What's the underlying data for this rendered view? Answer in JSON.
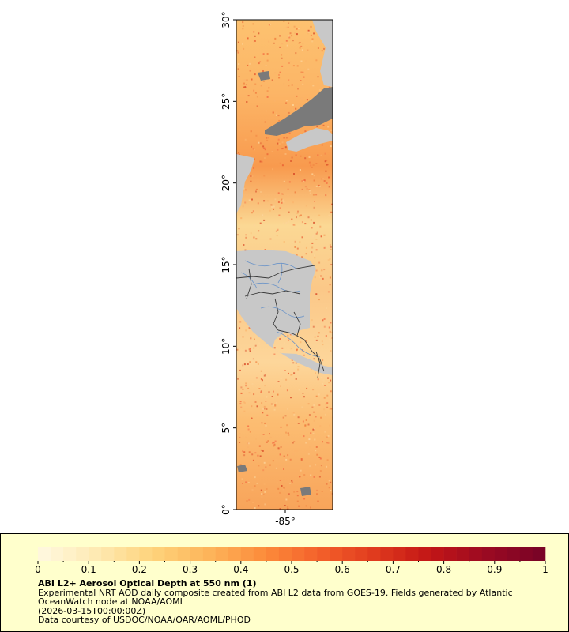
{
  "map": {
    "lat_labels": [
      "0°",
      "5°",
      "10°",
      "15°",
      "20°",
      "25°",
      "30°"
    ],
    "lon_labels": [
      "-85°"
    ],
    "lat_range": [
      0,
      30
    ],
    "colors": {
      "land": "#c8c8c8",
      "nodata": "#7a7a7a",
      "rivers": "#6b94c8",
      "borders": "#3a3a3a",
      "frame": "#000000"
    }
  },
  "legend": {
    "title": "ABI L2+ Aerosol Optical Depth at 550 nm (1)",
    "line1": "Experimental NRT AOD daily composite created from ABI L2 data from GOES-19. Fields generated by Atlantic",
    "line2": "OceanWatch node at NOAA/AOML",
    "line3": "(2026-03-15T00:00:00Z)",
    "line4": "Data courtesy of USDOC/NOAA/OAR/AOML/PHOD",
    "colorbar_ticks": [
      "0",
      "0.1",
      "0.2",
      "0.3",
      "0.4",
      "0.5",
      "0.6",
      "0.7",
      "0.8",
      "0.9",
      "1"
    ],
    "colorbar_range": [
      0,
      1
    ],
    "colorbar_colors": [
      "#fff7dc",
      "#fee9b0",
      "#fed27a",
      "#fdb45a",
      "#fc8c3b",
      "#f4602a",
      "#e03b1e",
      "#c31616",
      "#9c0a22",
      "#7a0426"
    ],
    "background": "#ffffcc"
  }
}
